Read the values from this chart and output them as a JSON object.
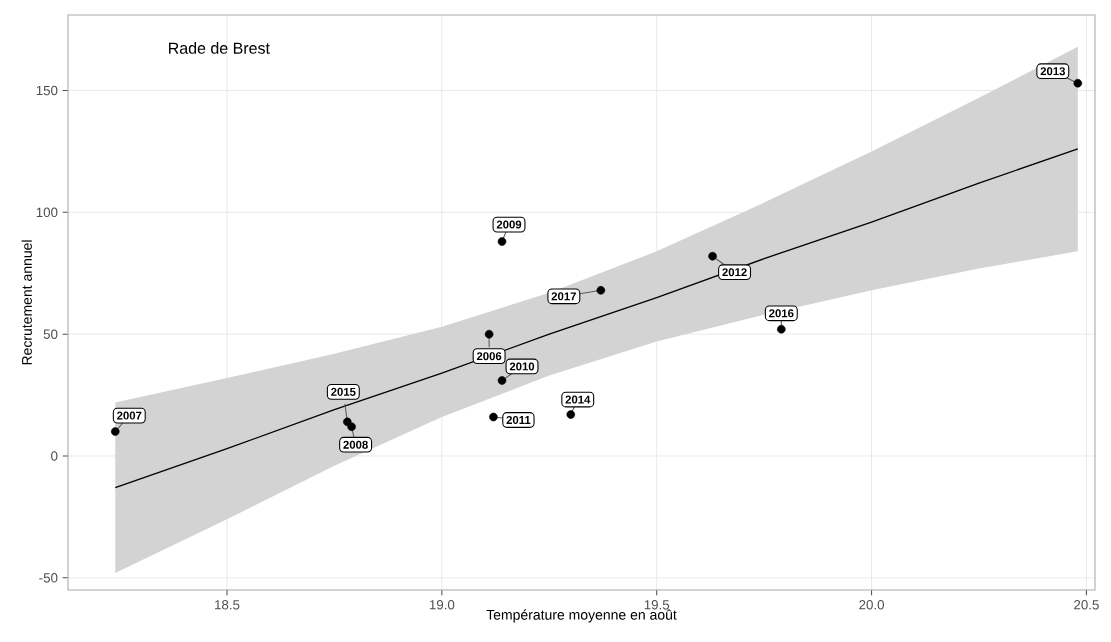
{
  "chart_data": {
    "type": "scatter",
    "title": "Rade de Brest",
    "xlabel": "Température moyenne en août",
    "ylabel": "Recrutement annuel",
    "xlim": [
      18.13,
      20.52
    ],
    "ylim": [
      -55,
      181
    ],
    "xticks": [
      {
        "value": 18.5,
        "label": "18.5"
      },
      {
        "value": 19.0,
        "label": "19.0"
      },
      {
        "value": 19.5,
        "label": "19.5"
      },
      {
        "value": 20.0,
        "label": "20.0"
      },
      {
        "value": 20.5,
        "label": "20.5"
      }
    ],
    "yticks": [
      -50,
      0,
      50,
      100,
      150
    ],
    "grid": true,
    "series": [
      {
        "color": "#000000",
        "marker": "circle",
        "x": [
          19.11,
          18.24,
          18.79,
          19.14,
          19.14,
          19.12,
          19.63,
          20.48,
          19.3,
          18.78,
          19.79,
          19.37
        ],
        "values": [
          50,
          10,
          12,
          88,
          31,
          16,
          82,
          153,
          17,
          14,
          52,
          68
        ]
      },
      {
        "type": "line",
        "color": "#000000",
        "marker": "none",
        "x": [
          18.24,
          18.5,
          18.75,
          19.0,
          19.25,
          19.5,
          19.75,
          20.0,
          20.25,
          20.48
        ],
        "values": [
          -13,
          3,
          19,
          34,
          50,
          65,
          81,
          96,
          112,
          126
        ],
        "lower": [
          -48,
          -26,
          -4,
          16,
          33,
          47,
          58,
          68,
          77,
          84
        ],
        "upper": [
          22,
          32,
          42,
          53,
          67,
          84,
          104,
          125,
          147,
          168
        ]
      }
    ],
    "annotations": [
      {
        "text": "2006",
        "x": 19.11,
        "y": 50
      },
      {
        "text": "2007",
        "x": 18.24,
        "y": 10
      },
      {
        "text": "2008",
        "x": 18.79,
        "y": 12
      },
      {
        "text": "2009",
        "x": 19.14,
        "y": 88
      },
      {
        "text": "2010",
        "x": 19.14,
        "y": 31
      },
      {
        "text": "2011",
        "x": 19.12,
        "y": 16
      },
      {
        "text": "2012",
        "x": 19.63,
        "y": 82
      },
      {
        "text": "2013",
        "x": 20.48,
        "y": 153
      },
      {
        "text": "2014",
        "x": 19.3,
        "y": 17
      },
      {
        "text": "2015",
        "x": 18.78,
        "y": 14
      },
      {
        "text": "2016",
        "x": 19.79,
        "y": 52
      },
      {
        "text": "2017",
        "x": 19.37,
        "y": 68
      }
    ]
  }
}
